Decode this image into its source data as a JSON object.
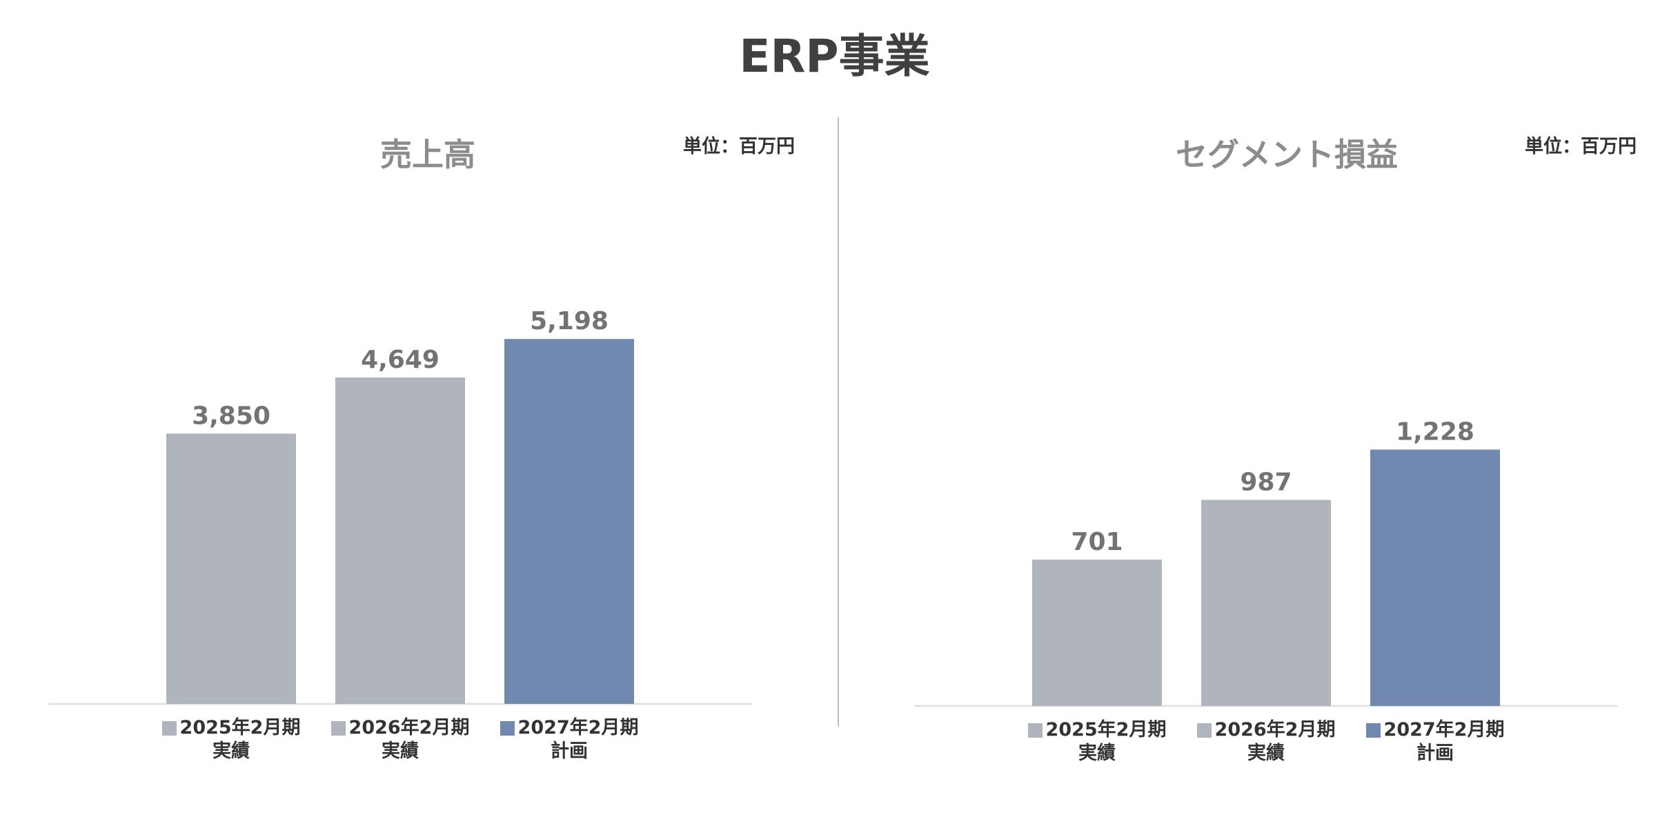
{
  "title": "ERP事業",
  "chart_data": [
    {
      "type": "bar",
      "title": "売上高",
      "unit_label": "単位：百万円",
      "categories": [
        "2025年2月期",
        "2026年2月期",
        "2027年2月期"
      ],
      "category_sublabels": [
        "実績",
        "実績",
        "計画"
      ],
      "values": [
        3850,
        4649,
        5198
      ],
      "value_labels": [
        "3,850",
        "4,649",
        "5,198"
      ],
      "colors": [
        "#b0b4bd",
        "#b0b4bd",
        "#7189b0"
      ],
      "ylim": [
        0,
        5800
      ]
    },
    {
      "type": "bar",
      "title": "セグメント損益",
      "unit_label": "単位：百万円",
      "categories": [
        "2025年2月期",
        "2026年2月期",
        "2027年2月期"
      ],
      "category_sublabels": [
        "実績",
        "実績",
        "計画"
      ],
      "values": [
        701,
        987,
        1228
      ],
      "value_labels": [
        "701",
        "987",
        "1,228"
      ],
      "colors": [
        "#b0b4bd",
        "#b0b4bd",
        "#7189b0"
      ],
      "ylim": [
        0,
        1950
      ]
    }
  ]
}
